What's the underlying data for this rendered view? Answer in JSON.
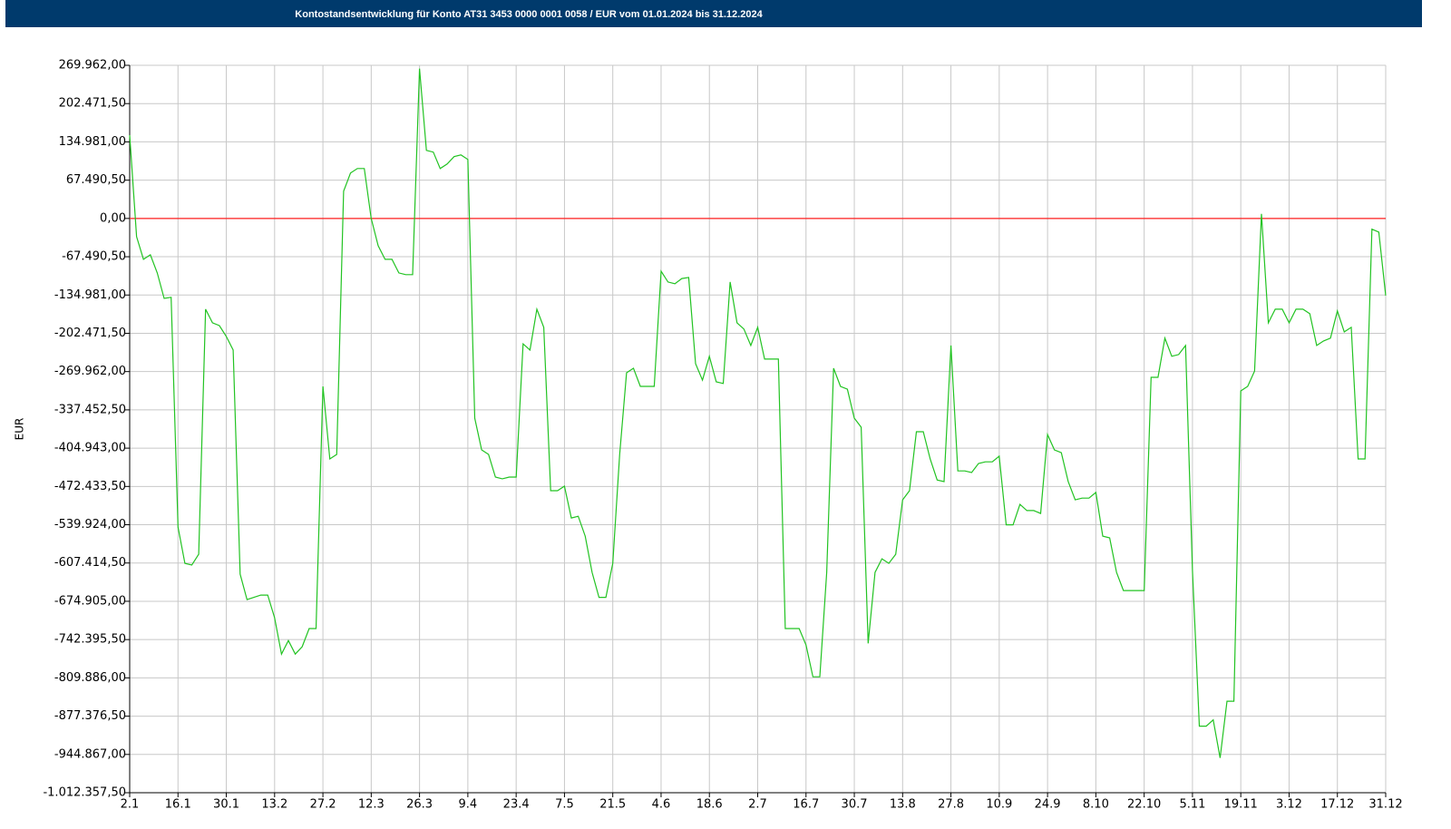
{
  "chart_data": {
    "type": "line",
    "title": "Kontostandsentwicklung für Konto AT31 3453 0000 0001 0058 / EUR vom 01.01.2024 bis 31.12.2024",
    "ylabel": "EUR",
    "color": "#22c322",
    "grid": true,
    "reference_line": {
      "value": 0,
      "color": "#ff2020"
    },
    "ylim": [
      -1012357.5,
      269962
    ],
    "yticks": [
      {
        "value": 269962,
        "label": "269.962,00"
      },
      {
        "value": 202471.5,
        "label": "202.471,50"
      },
      {
        "value": 134981,
        "label": "134.981,00"
      },
      {
        "value": 67490.5,
        "label": "67.490,50"
      },
      {
        "value": 0,
        "label": "0,00"
      },
      {
        "value": -67490.5,
        "label": "-67.490,50"
      },
      {
        "value": -134981,
        "label": "-134.981,00"
      },
      {
        "value": -202471.5,
        "label": "-202.471,50"
      },
      {
        "value": -269962,
        "label": "-269.962,00"
      },
      {
        "value": -337452.5,
        "label": "-337.452,50"
      },
      {
        "value": -404943,
        "label": "-404.943,00"
      },
      {
        "value": -472433.5,
        "label": "-472.433,50"
      },
      {
        "value": -539924,
        "label": "-539.924,00"
      },
      {
        "value": -607414.5,
        "label": "-607.414,50"
      },
      {
        "value": -674905,
        "label": "-674.905,00"
      },
      {
        "value": -742395.5,
        "label": "-742.395,50"
      },
      {
        "value": -809886,
        "label": "-809.886,00"
      },
      {
        "value": -877376.5,
        "label": "-877.376,50"
      },
      {
        "value": -944867,
        "label": "-944.867,00"
      },
      {
        "value": -1012357.5,
        "label": "-1.012.357,50"
      }
    ],
    "categories": [
      "2.1",
      null,
      null,
      null,
      null,
      null,
      null,
      "16.1",
      null,
      null,
      null,
      null,
      null,
      null,
      "30.1",
      null,
      null,
      null,
      null,
      null,
      null,
      "13.2",
      null,
      null,
      null,
      null,
      null,
      null,
      "27.2",
      null,
      null,
      null,
      null,
      null,
      null,
      "12.3",
      null,
      null,
      null,
      null,
      null,
      null,
      "26.3",
      null,
      null,
      null,
      null,
      null,
      null,
      "9.4",
      null,
      null,
      null,
      null,
      null,
      null,
      "23.4",
      null,
      null,
      null,
      null,
      null,
      null,
      "7.5",
      null,
      null,
      null,
      null,
      null,
      null,
      "21.5",
      null,
      null,
      null,
      null,
      null,
      null,
      "4.6",
      null,
      null,
      null,
      null,
      null,
      null,
      "18.6",
      null,
      null,
      null,
      null,
      null,
      null,
      "2.7",
      null,
      null,
      null,
      null,
      null,
      null,
      "16.7",
      null,
      null,
      null,
      null,
      null,
      null,
      "30.7",
      null,
      null,
      null,
      null,
      null,
      null,
      "13.8",
      null,
      null,
      null,
      null,
      null,
      null,
      "27.8",
      null,
      null,
      null,
      null,
      null,
      null,
      "10.9",
      null,
      null,
      null,
      null,
      null,
      null,
      "24.9",
      null,
      null,
      null,
      null,
      null,
      null,
      "8.10",
      null,
      null,
      null,
      null,
      null,
      null,
      "22.10",
      null,
      null,
      null,
      null,
      null,
      null,
      "5.11",
      null,
      null,
      null,
      null,
      null,
      null,
      "19.11",
      null,
      null,
      null,
      null,
      null,
      null,
      "3.12",
      null,
      null,
      null,
      null,
      null,
      null,
      "17.12",
      null,
      null,
      null,
      null,
      null,
      null,
      "31.12"
    ],
    "values": [
      147000,
      -32000,
      -72000,
      -64000,
      -96000,
      -141000,
      -139000,
      -544000,
      -608000,
      -611000,
      -592000,
      -160000,
      -184000,
      -189000,
      -208000,
      -232000,
      -627000,
      -672000,
      -668000,
      -664000,
      -664000,
      -704000,
      -768000,
      -744000,
      -768000,
      -755000,
      -723000,
      -723000,
      -296000,
      -424000,
      -416000,
      48000,
      80000,
      88000,
      88000,
      0,
      -48000,
      -72000,
      -72000,
      -96000,
      -99000,
      -99000,
      264000,
      120000,
      117000,
      88000,
      96000,
      109000,
      112000,
      104000,
      -352000,
      -408000,
      -416000,
      -456000,
      -459000,
      -456000,
      -456000,
      -221000,
      -232000,
      -160000,
      -192000,
      -480000,
      -480000,
      -472000,
      -528000,
      -525000,
      -560000,
      -624000,
      -668000,
      -668000,
      -608000,
      -416000,
      -272000,
      -264000,
      -296000,
      -296000,
      -296000,
      -93000,
      -112000,
      -115000,
      -106000,
      -104000,
      -256000,
      -285000,
      -243000,
      -288000,
      -291000,
      -112000,
      -184000,
      -195000,
      -224000,
      -192000,
      -248000,
      -248000,
      -248000,
      -723000,
      -723000,
      -723000,
      -752000,
      -808000,
      -808000,
      -624000,
      -264000,
      -296000,
      -301000,
      -352000,
      -368000,
      -749000,
      -624000,
      -600000,
      -608000,
      -592000,
      -496000,
      -480000,
      -376000,
      -376000,
      -424000,
      -461000,
      -464000,
      -224000,
      -445000,
      -445000,
      -448000,
      -432000,
      -429000,
      -429000,
      -419000,
      -540000,
      -540000,
      -504000,
      -515000,
      -515000,
      -520000,
      -381000,
      -408000,
      -413000,
      -464000,
      -496000,
      -493000,
      -493000,
      -483000,
      -560000,
      -563000,
      -624000,
      -656000,
      -656000,
      -656000,
      -656000,
      -280000,
      -280000,
      -211000,
      -243000,
      -240000,
      -224000,
      -620000,
      -895000,
      -895000,
      -884000,
      -951000,
      -851000,
      -851000,
      -304000,
      -296000,
      -269000,
      8000,
      -184000,
      -160000,
      -160000,
      -184000,
      -160000,
      -160000,
      -168000,
      -224000,
      -216000,
      -211000,
      -163000,
      -200000,
      -192000,
      -424000,
      -424000,
      -19000,
      -24000,
      -136000
    ]
  }
}
